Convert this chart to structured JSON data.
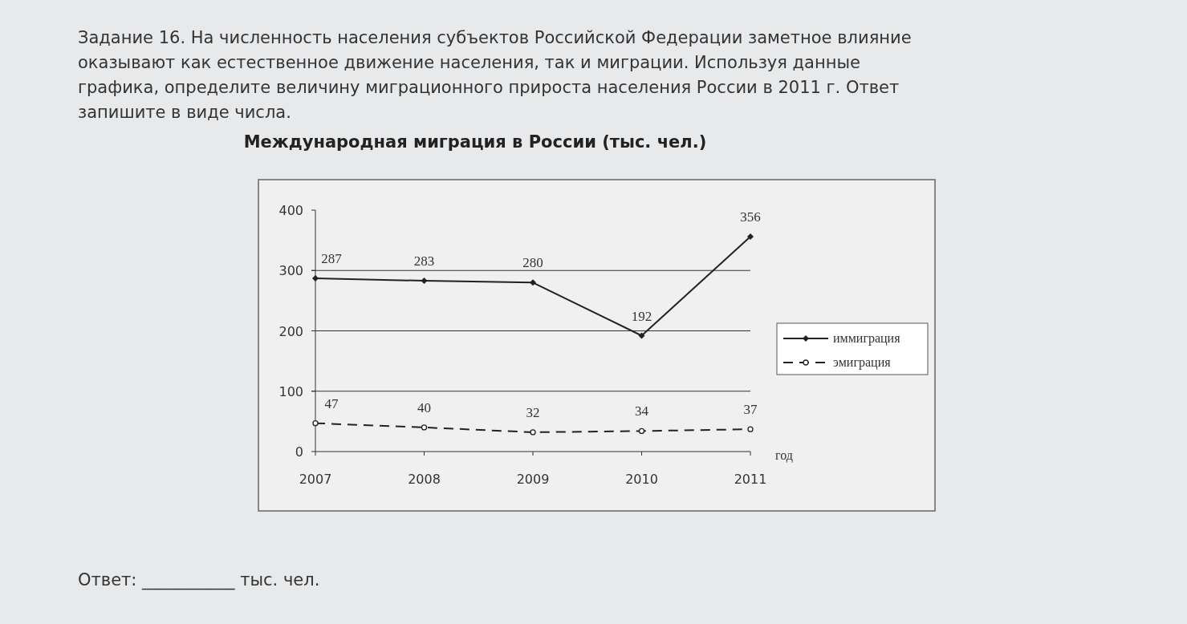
{
  "chart_data": {
    "type": "line",
    "title": "Международная миграция в России (тыс. чел.)",
    "xlabel": "год",
    "categories": [
      "2007",
      "2008",
      "2009",
      "2010",
      "2011"
    ],
    "series": [
      {
        "name": "иммиграция",
        "color": "#222222",
        "values": [
          287,
          283,
          280,
          192,
          356
        ],
        "marker": "diamond",
        "line_style": "solid"
      },
      {
        "name": "эмиграция",
        "color": "#222222",
        "values": [
          47,
          40,
          32,
          34,
          37
        ],
        "marker": "circle",
        "line_style": "dashed"
      }
    ],
    "ylim": [
      0,
      400
    ],
    "yticks": [
      0,
      100,
      200,
      300,
      400
    ],
    "grid": "y",
    "legend": "right",
    "data_labels": true,
    "annotations": [
      "Задание 16. На численность населения субъектов Российской Федерации заметное влияние",
      "оказывают как естественное движение населения, так и миграции. Используя данные",
      "графика, определите величину миграционного прироста населения России в 2011 г. Ответ",
      "запишите в виде числа.",
      "Ответ: ___________ тыс. чел."
    ]
  }
}
